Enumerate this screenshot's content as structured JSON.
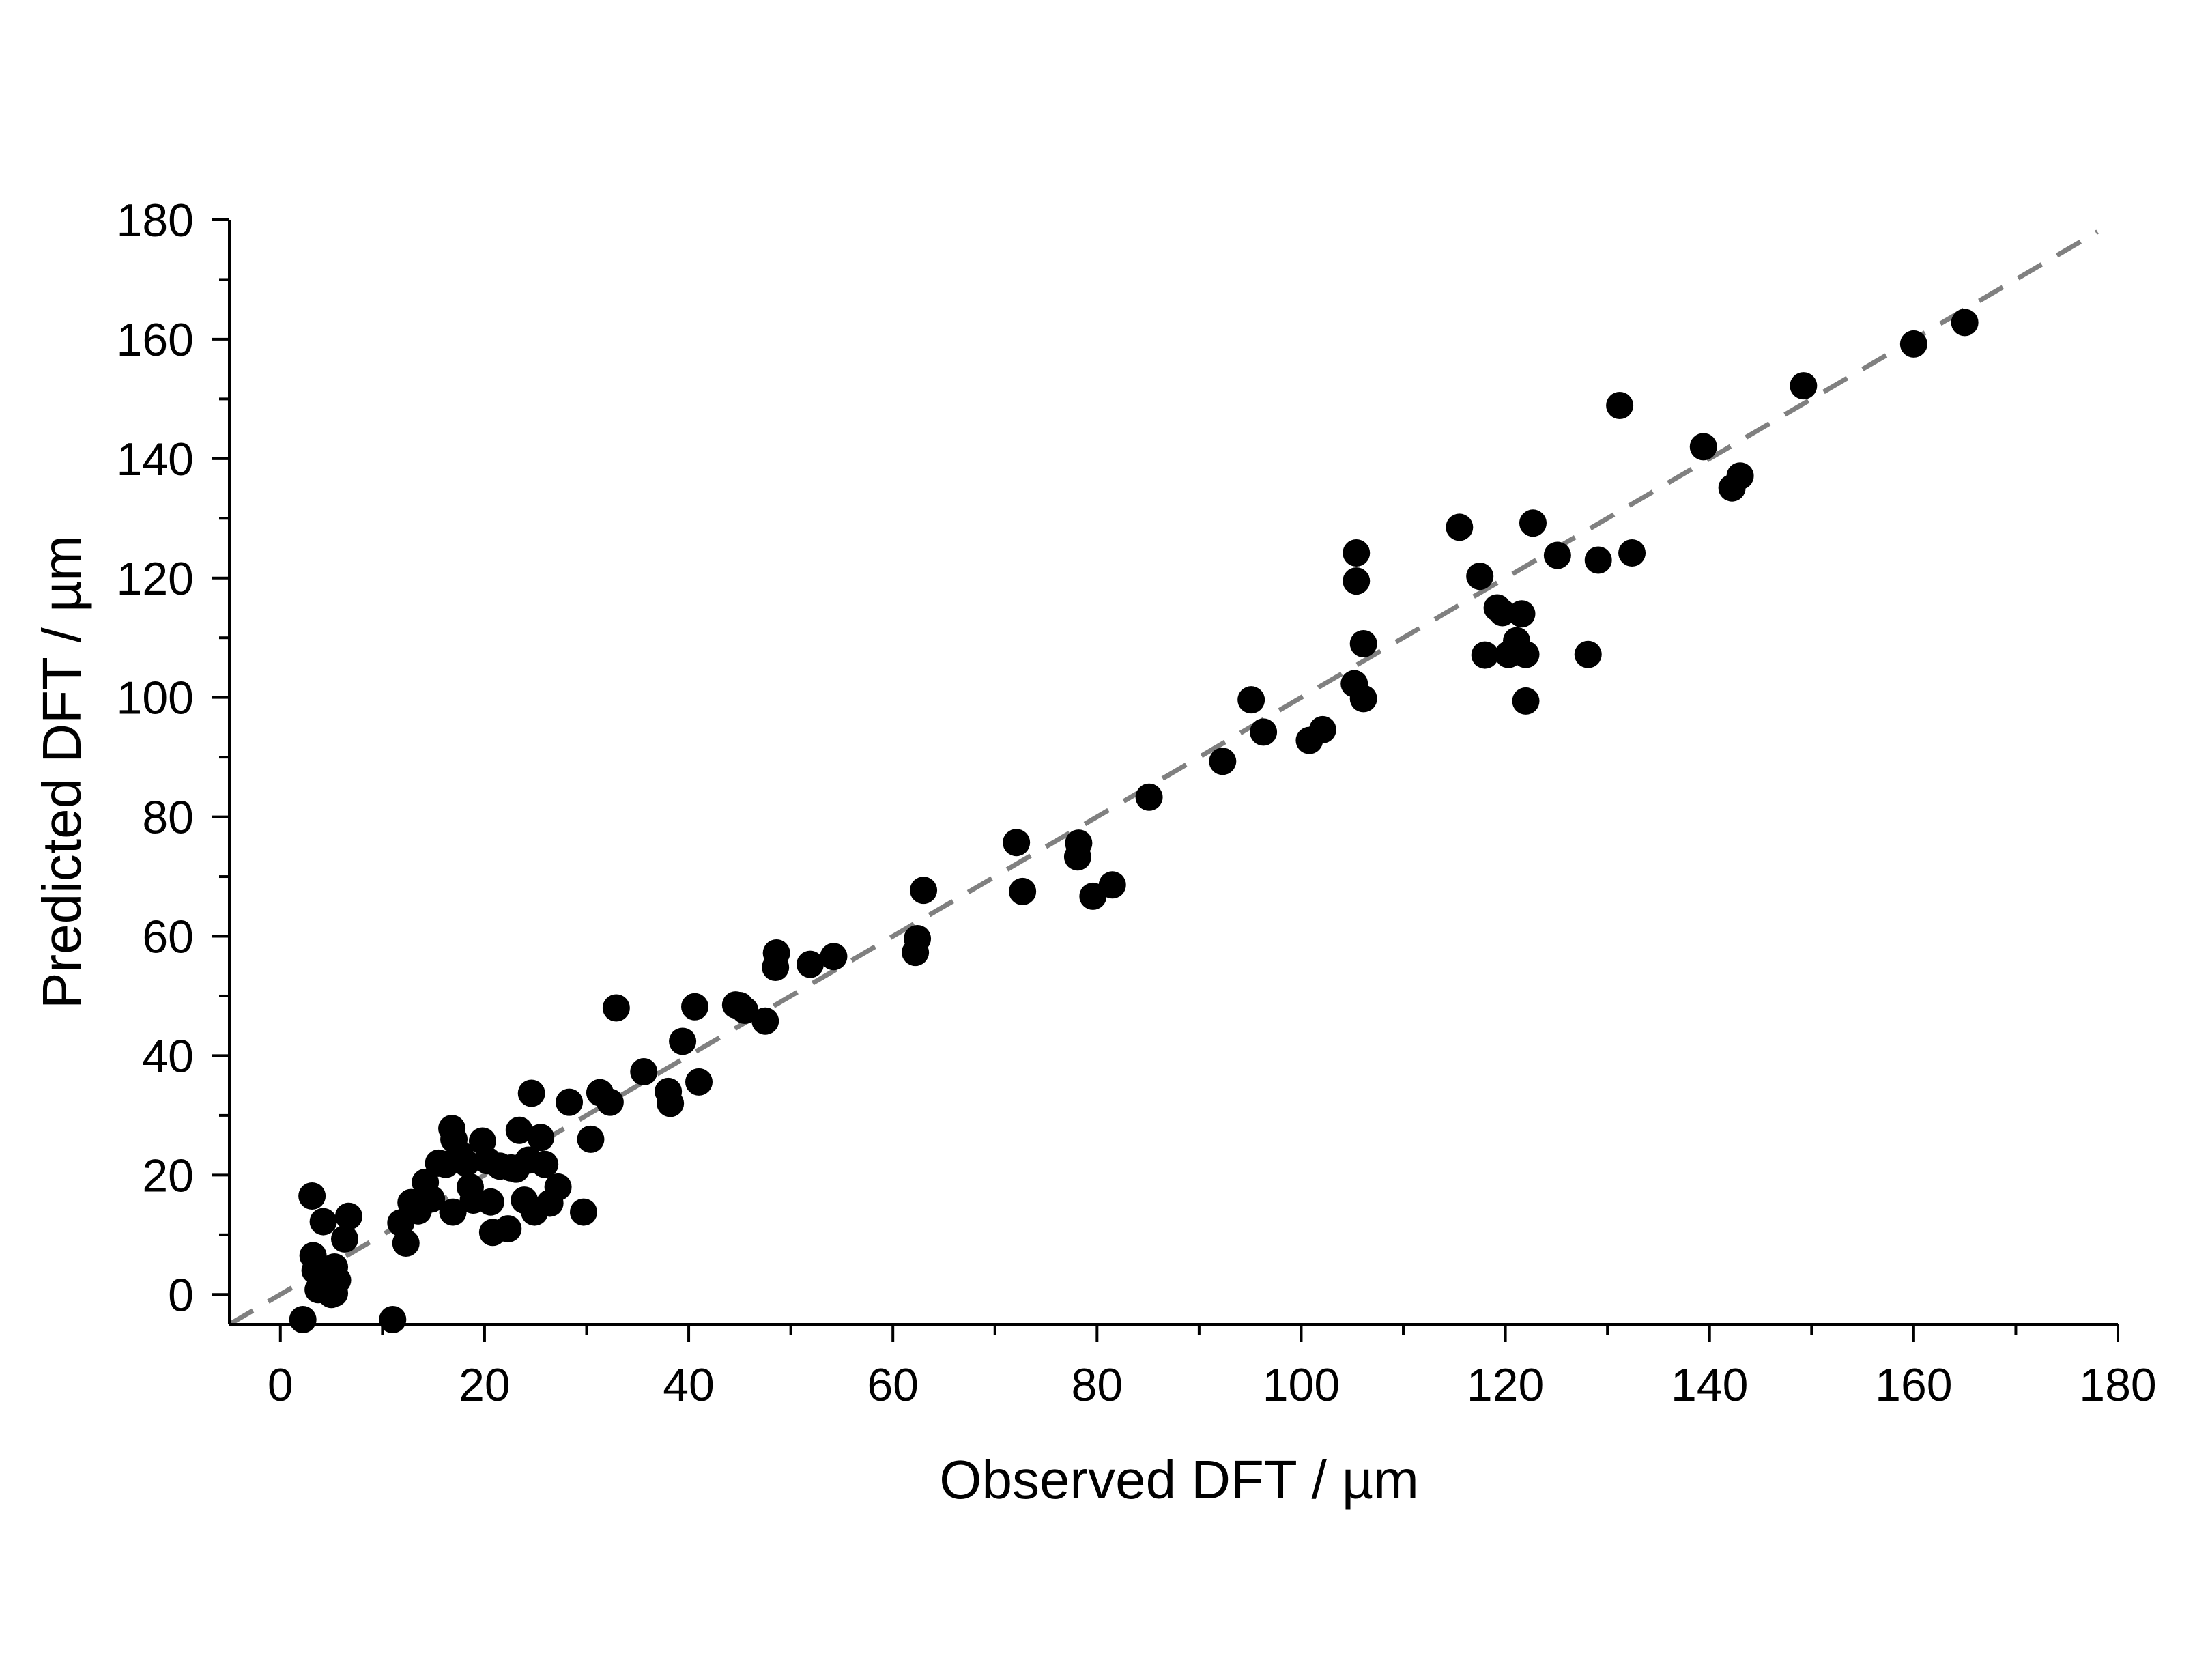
{
  "chart_data": {
    "type": "scatter",
    "title": "",
    "xlabel": "Observed DFT / µm",
    "ylabel": "Predicted DFT / µm",
    "xlim": [
      -5,
      180
    ],
    "ylim": [
      -5,
      180
    ],
    "xticks": [
      0,
      20,
      40,
      60,
      80,
      100,
      120,
      140,
      160,
      180
    ],
    "yticks": [
      0,
      20,
      40,
      60,
      80,
      100,
      120,
      140,
      160,
      180
    ],
    "grid": false,
    "reference_line": {
      "style": "dashed",
      "color": "#808080",
      "from": [
        -5,
        -5
      ],
      "to": [
        178,
        178
      ]
    },
    "series": [
      {
        "color": "#000000",
        "points": [
          [
            2.2,
            -4.2
          ],
          [
            3.1,
            16.5
          ],
          [
            3.2,
            6.5
          ],
          [
            3.4,
            4.0
          ],
          [
            3.7,
            0.8
          ],
          [
            4.2,
            12.2
          ],
          [
            4.6,
            2.0
          ],
          [
            5.0,
            0.0
          ],
          [
            5.3,
            4.6
          ],
          [
            5.6,
            2.4
          ],
          [
            5.3,
            0.2
          ],
          [
            6.3,
            9.3
          ],
          [
            6.7,
            13.1
          ],
          [
            11.0,
            -4.2
          ],
          [
            11.8,
            12.0
          ],
          [
            12.3,
            8.6
          ],
          [
            12.8,
            15.4
          ],
          [
            13.5,
            14.0
          ],
          [
            14.2,
            18.8
          ],
          [
            14.8,
            16.0
          ],
          [
            15.5,
            22.0
          ],
          [
            16.2,
            21.8
          ],
          [
            16.8,
            27.8
          ],
          [
            17.0,
            26.0
          ],
          [
            16.9,
            13.8
          ],
          [
            17.6,
            23.5
          ],
          [
            18.2,
            22.0
          ],
          [
            18.6,
            18.0
          ],
          [
            18.9,
            15.8
          ],
          [
            19.8,
            25.7
          ],
          [
            20.3,
            22.4
          ],
          [
            20.6,
            15.5
          ],
          [
            20.8,
            10.4
          ],
          [
            21.5,
            21.5
          ],
          [
            22.3,
            11.0
          ],
          [
            22.6,
            21.2
          ],
          [
            23.1,
            21.0
          ],
          [
            23.4,
            27.5
          ],
          [
            23.9,
            15.8
          ],
          [
            24.3,
            22.5
          ],
          [
            24.6,
            33.7
          ],
          [
            24.9,
            13.8
          ],
          [
            25.5,
            26.3
          ],
          [
            25.9,
            21.8
          ],
          [
            26.4,
            15.3
          ],
          [
            27.2,
            18.0
          ],
          [
            28.3,
            32.2
          ],
          [
            29.7,
            13.8
          ],
          [
            30.4,
            26.0
          ],
          [
            31.3,
            33.8
          ],
          [
            32.3,
            32.2
          ],
          [
            32.9,
            48.0
          ],
          [
            35.6,
            37.3
          ],
          [
            38.0,
            34.0
          ],
          [
            38.2,
            32.0
          ],
          [
            39.4,
            42.4
          ],
          [
            40.6,
            48.2
          ],
          [
            41.0,
            35.6
          ],
          [
            44.6,
            48.5
          ],
          [
            45.0,
            48.4
          ],
          [
            45.5,
            47.6
          ],
          [
            47.5,
            45.8
          ],
          [
            48.5,
            54.8
          ],
          [
            48.6,
            57.2
          ],
          [
            51.9,
            55.3
          ],
          [
            54.2,
            56.6
          ],
          [
            62.2,
            57.3
          ],
          [
            62.4,
            59.6
          ],
          [
            63.0,
            67.7
          ],
          [
            72.1,
            75.7
          ],
          [
            72.7,
            67.5
          ],
          [
            78.2,
            75.6
          ],
          [
            78.1,
            73.3
          ],
          [
            79.6,
            66.7
          ],
          [
            81.5,
            68.6
          ],
          [
            85.1,
            83.3
          ],
          [
            92.3,
            89.3
          ],
          [
            95.1,
            99.6
          ],
          [
            96.3,
            94.2
          ],
          [
            100.8,
            92.8
          ],
          [
            102.1,
            94.6
          ],
          [
            105.2,
            102.3
          ],
          [
            105.4,
            124.2
          ],
          [
            105.4,
            119.5
          ],
          [
            106.1,
            109.0
          ],
          [
            106.1,
            99.8
          ],
          [
            115.5,
            128.5
          ],
          [
            117.5,
            120.3
          ],
          [
            118.0,
            107.1
          ],
          [
            119.2,
            115.0
          ],
          [
            119.7,
            114.2
          ],
          [
            120.3,
            107.2
          ],
          [
            121.1,
            109.5
          ],
          [
            121.6,
            114.0
          ],
          [
            122.0,
            107.2
          ],
          [
            122.0,
            99.4
          ],
          [
            122.7,
            129.2
          ],
          [
            125.1,
            123.8
          ],
          [
            128.1,
            107.2
          ],
          [
            129.1,
            123.0
          ],
          [
            131.2,
            148.9
          ],
          [
            132.4,
            124.2
          ],
          [
            139.4,
            142.0
          ],
          [
            142.2,
            135.1
          ],
          [
            143.0,
            137.1
          ],
          [
            149.2,
            152.2
          ],
          [
            160.0,
            159.2
          ],
          [
            165.0,
            162.8
          ]
        ]
      }
    ]
  }
}
